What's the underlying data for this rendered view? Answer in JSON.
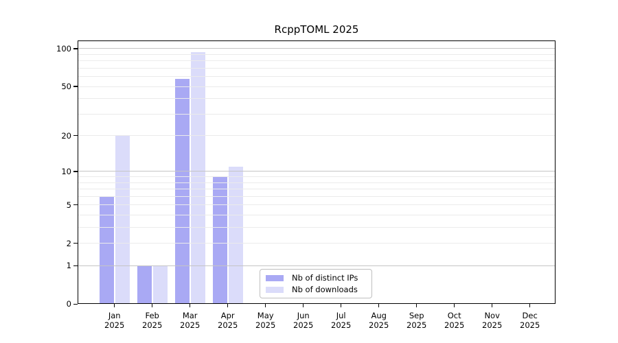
{
  "title": "RcppTOML 2025",
  "chart_data": {
    "type": "bar",
    "title": "RcppTOML 2025",
    "categories": [
      "Jan",
      "Feb",
      "Mar",
      "Apr",
      "May",
      "Jun",
      "Jul",
      "Aug",
      "Sep",
      "Oct",
      "Nov",
      "Dec"
    ],
    "year": "2025",
    "series": [
      {
        "name": "Nb of distinct IPs",
        "color": "#a9a9f4",
        "values": [
          6,
          1,
          57,
          9,
          0,
          0,
          0,
          0,
          0,
          0,
          0,
          0
        ]
      },
      {
        "name": "Nb of downloads",
        "color": "#dbdcfa",
        "values": [
          20,
          1,
          93,
          11,
          0,
          0,
          0,
          0,
          0,
          0,
          0,
          0
        ]
      }
    ],
    "y_axis": {
      "scale": "log1p",
      "tick_values": [
        0,
        1,
        2,
        5,
        10,
        20,
        50,
        100
      ],
      "tick_labels": [
        "0",
        "1",
        "2",
        "5",
        "10",
        "20",
        "50",
        "100"
      ],
      "major_grid_values": [
        1,
        10,
        100
      ],
      "minor_grid_values": [
        2,
        3,
        4,
        5,
        6,
        7,
        8,
        9,
        20,
        30,
        40,
        50,
        60,
        70,
        80,
        90
      ]
    },
    "legend": {
      "position": "bottom-center",
      "entries": [
        "Nb of distinct IPs",
        "Nb of downloads"
      ]
    },
    "grid_on": true
  },
  "colors": {
    "bar_distinct_ips": "#a9a9f4",
    "bar_downloads": "#dbdcfa",
    "grid_major": "#c5c5c5",
    "grid_minor": "#ebebeb",
    "spine": "#000000",
    "legend_border": "#bfbfbf",
    "background": "#ffffff"
  }
}
